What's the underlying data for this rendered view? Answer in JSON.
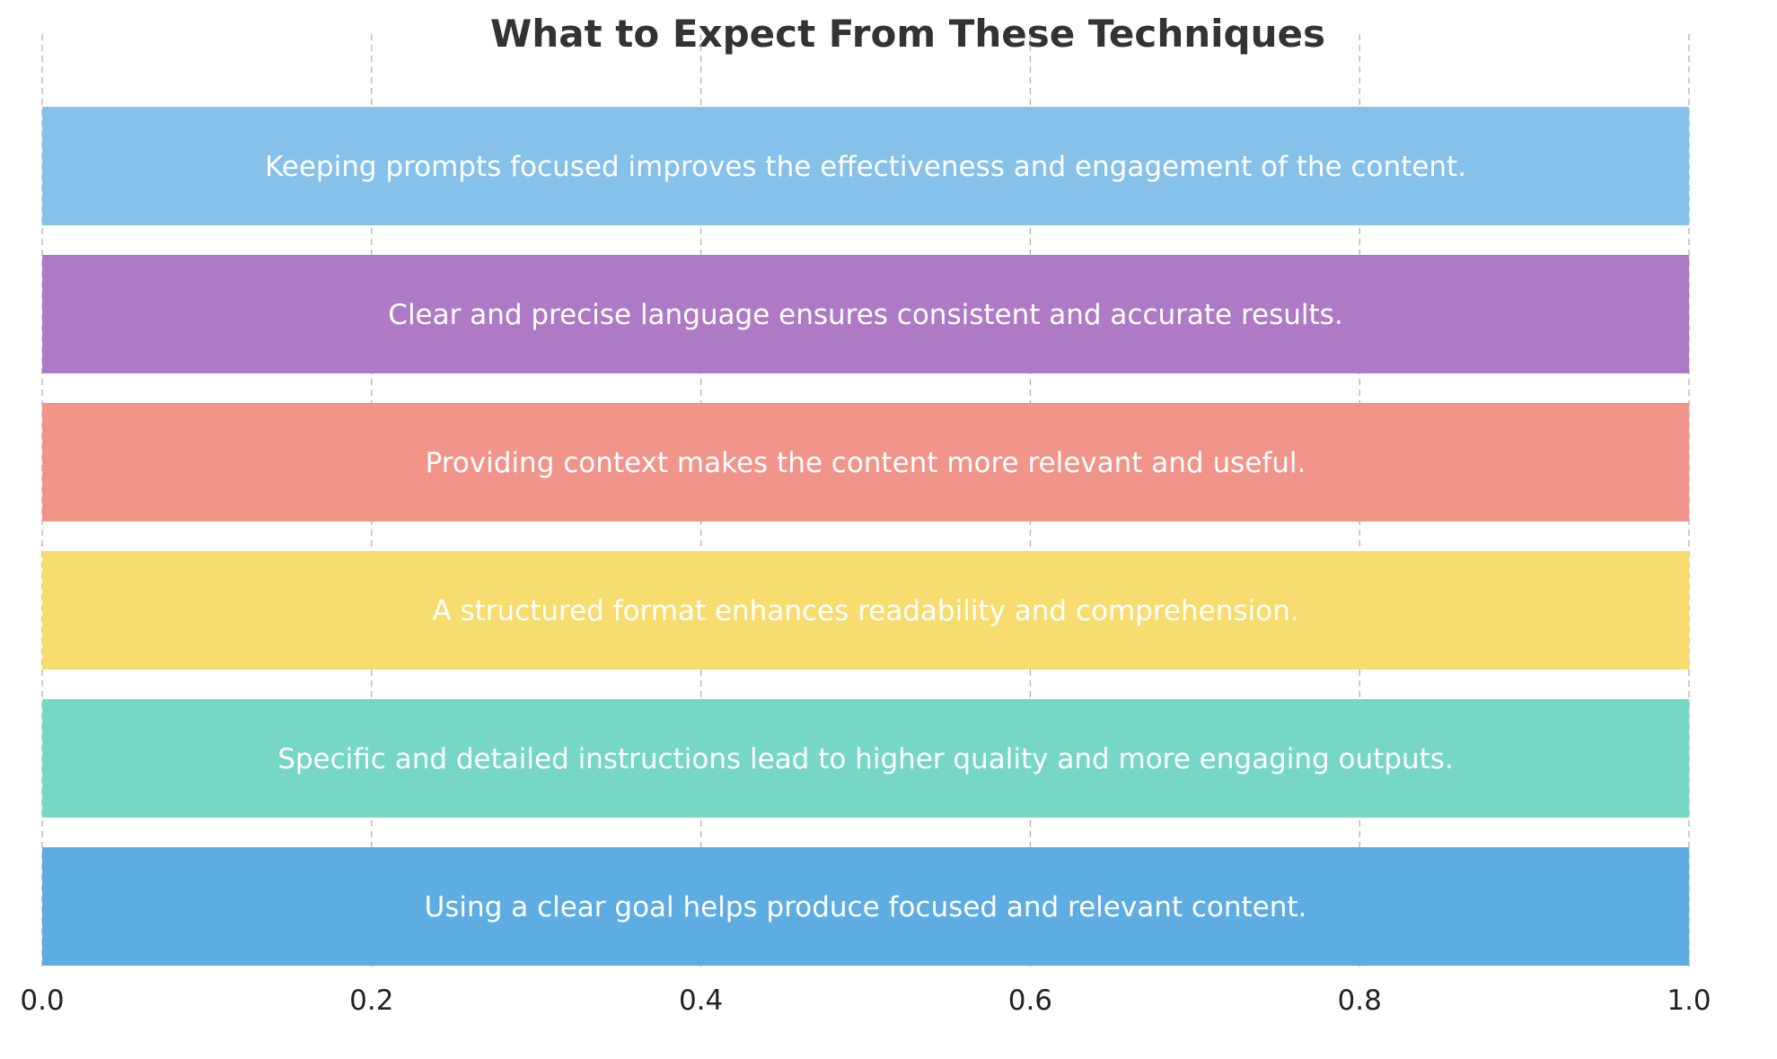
{
  "chart_data": {
    "type": "bar",
    "orientation": "horizontal",
    "title": "What to Expect From These Techniques",
    "xlabel": "",
    "ylabel": "",
    "xlim": [
      0.0,
      1.0
    ],
    "grid": "x-dashed",
    "x_ticks": [
      "0.0",
      "0.2",
      "0.4",
      "0.6",
      "0.8",
      "1.0"
    ],
    "bars": [
      {
        "label": "Using a clear goal helps produce focused and relevant content.",
        "value": 1.0,
        "color": "#5DADE2"
      },
      {
        "label": "Specific and detailed instructions lead to higher quality and more engaging outputs.",
        "value": 1.0,
        "color": "#76D7C4"
      },
      {
        "label": "A structured format enhances readability and comprehension.",
        "value": 1.0,
        "color": "#F7DC6F"
      },
      {
        "label": "Providing context makes the content more relevant and useful.",
        "value": 1.0,
        "color": "#F1948A"
      },
      {
        "label": "Clear and precise language ensures consistent and accurate results.",
        "value": 1.0,
        "color": "#AF7AC5"
      },
      {
        "label": "Keeping prompts focused improves the effectiveness and engagement of the content.",
        "value": 1.0,
        "color": "#85C1E9"
      }
    ]
  }
}
